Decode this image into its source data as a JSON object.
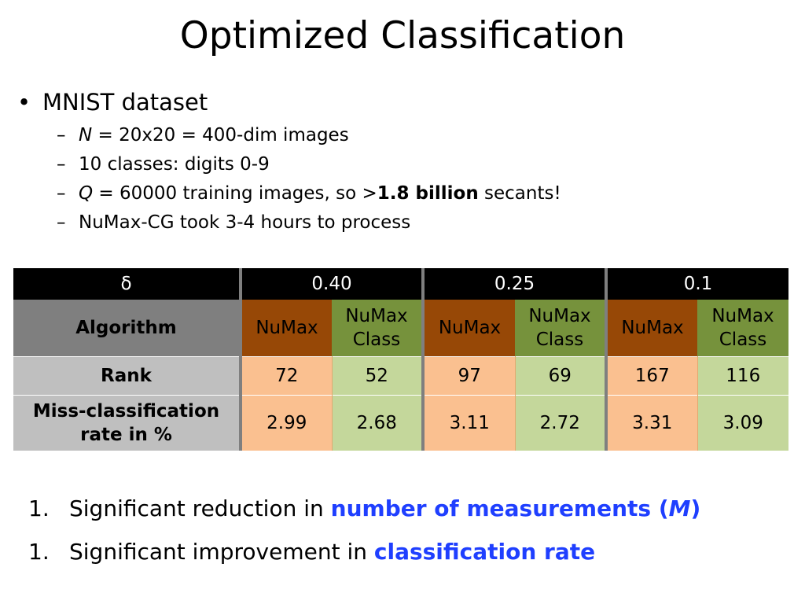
{
  "slide": {
    "title": "Optimized Classification",
    "bullet": {
      "marker": "•",
      "text": "MNIST dataset",
      "subitems": [
        {
          "marker": "–",
          "italic": "N",
          "text": " = 20x20 = 400-dim images"
        },
        {
          "marker": "–",
          "text": "10 classes: digits 0-9"
        },
        {
          "marker": "–",
          "italic": "Q",
          "text": " = 60000 training images, so >",
          "bold": "1.8 billion",
          "after": " secants!"
        },
        {
          "marker": "–",
          "text": "NuMax-CG took 3-4 hours to process"
        }
      ]
    },
    "table": {
      "delta_label": "δ",
      "deltas": [
        "0.40",
        "0.25",
        "0.1"
      ],
      "row_labels": {
        "algorithm": "Algorithm",
        "rank": "Rank",
        "miss_line1": "Miss-classification",
        "miss_line2": "rate in %"
      },
      "algo_numax": "NuMax",
      "algo_class_line1": "NuMax",
      "algo_class_line2": "Class",
      "rank": [
        "72",
        "52",
        "97",
        "69",
        "167",
        "116"
      ],
      "miss": [
        "2.99",
        "2.68",
        "3.11",
        "2.72",
        "3.31",
        "3.09"
      ]
    },
    "conclusions": [
      {
        "num": "1.",
        "text": "Significant reduction in ",
        "hl": "number of measurements (",
        "hl_italic": "M",
        "hl_end": ")"
      },
      {
        "num": "1.",
        "text": "Significant improvement in ",
        "hl": "classification rate"
      }
    ],
    "colors": {
      "header": "#000000",
      "numax_algo": "#974806",
      "numaxclass_algo": "#76923c",
      "numax_value": "#fac090",
      "numaxclass_value": "#c4d79b",
      "label_gray": "#bfbfbf",
      "label_dark": "#7f7f7f",
      "highlight": "#1f3fff"
    }
  }
}
